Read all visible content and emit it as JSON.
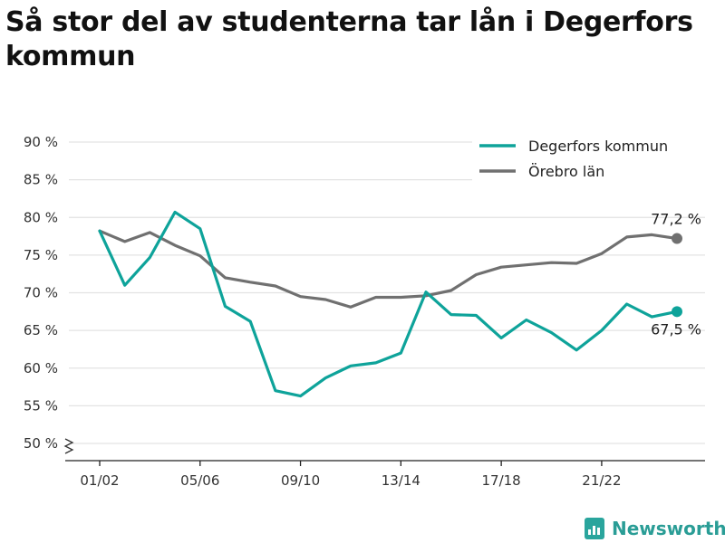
{
  "title": "Så stor del av studenterna tar lån i Degerfors kommun",
  "brand": {
    "name": "Newsworthy",
    "icon": "newsworthy-logo-icon"
  },
  "chart_data": {
    "type": "line",
    "title": "Så stor del av studenterna tar lån i Degerfors kommun",
    "xlabel": "",
    "ylabel": "",
    "ylim": [
      50,
      90
    ],
    "y_ticks": [
      "50 %",
      "55 %",
      "60 %",
      "65 %",
      "70 %",
      "75 %",
      "80 %",
      "85 %",
      "90 %"
    ],
    "y_axis_break": true,
    "x": [
      "01/02",
      "02/03",
      "03/04",
      "04/05",
      "05/06",
      "06/07",
      "07/08",
      "08/09",
      "09/10",
      "10/11",
      "11/12",
      "12/13",
      "13/14",
      "14/15",
      "15/16",
      "16/17",
      "17/18",
      "18/19",
      "19/20",
      "20/21",
      "21/22",
      "22/23",
      "23/24",
      "24/25"
    ],
    "x_tick_labels": [
      "01/02",
      "05/06",
      "09/10",
      "13/14",
      "17/18",
      "21/22"
    ],
    "grid": true,
    "legend_position": "top-right",
    "series": [
      {
        "name": "Degerfors kommun",
        "color": "#0ea39a",
        "values": [
          78.2,
          71.0,
          74.7,
          80.7,
          78.5,
          68.2,
          66.2,
          57.0,
          56.3,
          58.7,
          60.3,
          60.7,
          62.0,
          70.1,
          67.1,
          67.0,
          64.0,
          66.4,
          64.7,
          62.4,
          65.0,
          68.5,
          66.8,
          67.5
        ],
        "end_label": "67,5 %"
      },
      {
        "name": "Örebro län",
        "color": "#707070",
        "values": [
          78.2,
          76.8,
          78.0,
          76.3,
          74.9,
          72.0,
          71.4,
          70.9,
          69.5,
          69.1,
          68.1,
          69.4,
          69.4,
          69.6,
          70.3,
          72.4,
          73.4,
          73.7,
          74.0,
          73.9,
          75.2,
          77.4,
          77.7,
          77.2
        ],
        "end_label": "77,2 %"
      }
    ]
  }
}
